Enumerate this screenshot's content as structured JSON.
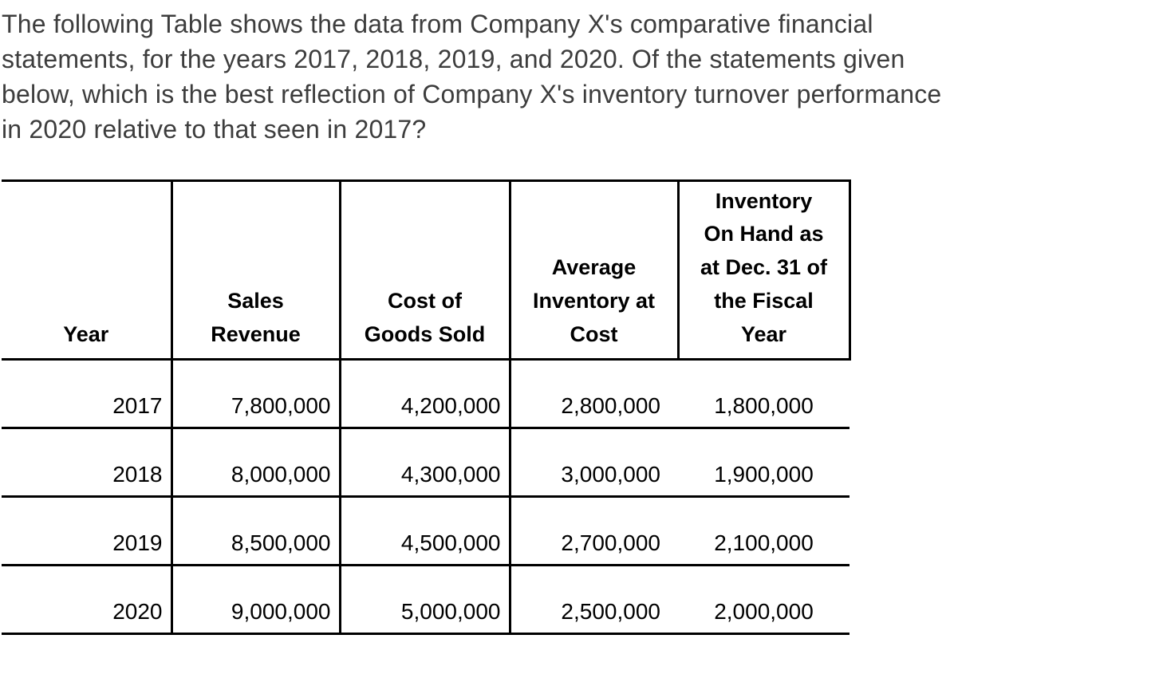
{
  "question": {
    "text": "The following Table shows the data from Company X's comparative financial\nstatements, for the years 2017, 2018, 2019, and 2020. Of the statements given\nbelow, which is the best reflection of Company X's inventory turnover performance\nin 2020 relative to that seen in 2017?"
  },
  "table": {
    "headers": [
      "Year",
      "Sales\nRevenue",
      "Cost of\nGoods Sold",
      "Average\nInventory at\nCost",
      "Inventory\nOn Hand as\nat Dec. 31 of\nthe Fiscal\nYear"
    ],
    "rows": [
      [
        "2017",
        "7,800,000",
        "4,200,000",
        "2,800,000",
        "1,800,000"
      ],
      [
        "2018",
        "8,000,000",
        "4,300,000",
        "3,000,000",
        "1,900,000"
      ],
      [
        "2019",
        "8,500,000",
        "4,500,000",
        "2,700,000",
        "2,100,000"
      ],
      [
        "2020",
        "9,000,000",
        "5,000,000",
        "2,500,000",
        "2,000,000"
      ]
    ]
  },
  "chart_data": {
    "type": "table",
    "columns": [
      "Year",
      "Sales Revenue",
      "Cost of Goods Sold",
      "Average Inventory at Cost",
      "Inventory On Hand as at Dec. 31 of the Fiscal Year"
    ],
    "rows": [
      [
        2017,
        7800000,
        4200000,
        2800000,
        1800000
      ],
      [
        2018,
        8000000,
        4300000,
        3000000,
        1900000
      ],
      [
        2019,
        8500000,
        4500000,
        2700000,
        2100000
      ],
      [
        2020,
        9000000,
        5000000,
        2500000,
        2000000
      ]
    ]
  },
  "colors": {
    "question_text": "#3d3d3d",
    "table_text": "#000000",
    "border": "#000000",
    "background": "#ffffff"
  }
}
